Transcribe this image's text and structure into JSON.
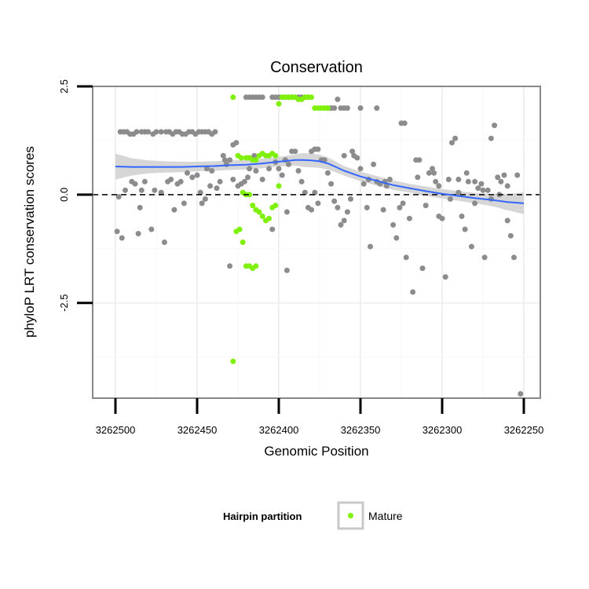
{
  "chart_data": {
    "type": "scatter",
    "title": "Conservation",
    "xlabel": "Genomic Position",
    "ylabel": "phyloP LRT conservation scores",
    "x_reversed": true,
    "xlim": [
      3262500,
      3262250
    ],
    "ylim": [
      -4.7,
      2.5
    ],
    "x_ticks": [
      3262500,
      3262450,
      3262400,
      3262350,
      3262300,
      3262250
    ],
    "x_tick_labels": [
      "3262500",
      "3262450",
      "3262400",
      "3262350",
      "3262300",
      "3262250"
    ],
    "y_ticks": [
      2.5,
      0.0,
      -2.5
    ],
    "y_tick_labels": [
      "2.5",
      "0.0",
      "-2.5"
    ],
    "reference_line": {
      "y": 0,
      "style": "dashed"
    },
    "legend": {
      "title": "Hairpin partition",
      "entries": [
        {
          "label": "Mature",
          "color": "#7ff00a"
        }
      ]
    },
    "colors": {
      "other_points": "#8c8c8c",
      "mature_points": "#7ff00a",
      "smooth_line": "#3366ff",
      "confidence_band": "#cfcfcf",
      "panel_border": "#888888"
    },
    "series": [
      {
        "name": "Other",
        "color": "#8c8c8c",
        "points": [
          [
            3262497,
            1.45
          ],
          [
            3262495,
            1.45
          ],
          [
            3262493,
            1.45
          ],
          [
            3262491,
            1.4
          ],
          [
            3262489,
            1.4
          ],
          [
            3262487,
            1.45
          ],
          [
            3262484,
            1.45
          ],
          [
            3262482,
            1.45
          ],
          [
            3262480,
            1.45
          ],
          [
            3262477,
            1.4
          ],
          [
            3262475,
            1.45
          ],
          [
            3262472,
            1.45
          ],
          [
            3262469,
            1.45
          ],
          [
            3262467,
            1.45
          ],
          [
            3262465,
            1.4
          ],
          [
            3262463,
            1.45
          ],
          [
            3262461,
            1.45
          ],
          [
            3262459,
            1.4
          ],
          [
            3262457,
            1.4
          ],
          [
            3262455,
            1.45
          ],
          [
            3262453,
            1.45
          ],
          [
            3262451,
            1.4
          ],
          [
            3262449,
            1.45
          ],
          [
            3262447,
            1.45
          ],
          [
            3262445,
            1.45
          ],
          [
            3262443,
            1.45
          ],
          [
            3262441,
            1.4
          ],
          [
            3262439,
            1.45
          ],
          [
            3262499,
            -0.85
          ],
          [
            3262496,
            -1.0
          ],
          [
            3262490,
            0.3
          ],
          [
            3262488,
            0.25
          ],
          [
            3262486,
            -0.9
          ],
          [
            3262484,
            0.1
          ],
          [
            3262482,
            0.3
          ],
          [
            3262478,
            -0.8
          ],
          [
            3262476,
            0.1
          ],
          [
            3262470,
            -1.1
          ],
          [
            3262468,
            0.3
          ],
          [
            3262466,
            0.35
          ],
          [
            3262462,
            0.25
          ],
          [
            3262460,
            0.3
          ],
          [
            3262458,
            -0.2
          ],
          [
            3262456,
            0.5
          ],
          [
            3262453,
            0.4
          ],
          [
            3262450,
            0.45
          ],
          [
            3262447,
            -0.2
          ],
          [
            3262444,
            0.6
          ],
          [
            3262441,
            0.55
          ],
          [
            3262438,
            0.15
          ],
          [
            3262436,
            0.3
          ],
          [
            3262434,
            0.9
          ],
          [
            3262432,
            0.7
          ],
          [
            3262430,
            0.8
          ],
          [
            3262428,
            0.35
          ],
          [
            3262425,
            0.2
          ],
          [
            3262423,
            0.25
          ],
          [
            3262421,
            0.3
          ],
          [
            3262419,
            0.4
          ],
          [
            3262498,
            -0.05
          ],
          [
            3262494,
            0.1
          ],
          [
            3262485,
            -0.3
          ],
          [
            3262472,
            0.05
          ],
          [
            3262464,
            -0.35
          ],
          [
            3262448,
            0.05
          ],
          [
            3262445,
            -0.1
          ],
          [
            3262442,
            0.2
          ],
          [
            3262418,
            0.6
          ],
          [
            3262414,
            0.55
          ],
          [
            3262410,
            0.35
          ],
          [
            3262406,
            0.6
          ],
          [
            3262404,
            -0.8
          ],
          [
            3262402,
            0.75
          ],
          [
            3262400,
            0.6
          ],
          [
            3262398,
            0.45
          ],
          [
            3262396,
            0.8
          ],
          [
            3262394,
            0.7
          ],
          [
            3262392,
            1.0
          ],
          [
            3262390,
            1.0
          ],
          [
            3262388,
            0.55
          ],
          [
            3262386,
            0.3
          ],
          [
            3262384,
            0.05
          ],
          [
            3262382,
            -0.3
          ],
          [
            3262380,
            -0.35
          ],
          [
            3262378,
            0.05
          ],
          [
            3262376,
            -0.2
          ],
          [
            3262374,
            0.8
          ],
          [
            3262372,
            0.8
          ],
          [
            3262370,
            0.5
          ],
          [
            3262368,
            0.25
          ],
          [
            3262366,
            -0.15
          ],
          [
            3262364,
            -0.3
          ],
          [
            3262362,
            -0.7
          ],
          [
            3262360,
            -0.6
          ],
          [
            3262358,
            -0.4
          ],
          [
            3262356,
            -0.1
          ],
          [
            3262354,
            0.9
          ],
          [
            3262352,
            0.85
          ],
          [
            3262350,
            0.6
          ],
          [
            3262348,
            0.25
          ],
          [
            3262346,
            -0.3
          ],
          [
            3262344,
            -1.2
          ],
          [
            3262342,
            0.7
          ],
          [
            3262340,
            0.3
          ],
          [
            3262338,
            0.25
          ],
          [
            3262336,
            -0.35
          ],
          [
            3262334,
            0.2
          ],
          [
            3262332,
            0.35
          ],
          [
            3262330,
            -0.7
          ],
          [
            3262328,
            -1.0
          ],
          [
            3262326,
            -0.3
          ],
          [
            3262324,
            -0.2
          ],
          [
            3262322,
            -1.45
          ],
          [
            3262320,
            -0.55
          ],
          [
            3262318,
            -2.25
          ],
          [
            3262316,
            0.8
          ],
          [
            3262314,
            0.8
          ],
          [
            3262312,
            -1.7
          ],
          [
            3262310,
            -0.25
          ],
          [
            3262308,
            0.5
          ],
          [
            3262306,
            0.6
          ],
          [
            3262304,
            0.3
          ],
          [
            3262302,
            -0.5
          ],
          [
            3262300,
            -0.55
          ],
          [
            3262298,
            -1.9
          ],
          [
            3262296,
            0.35
          ],
          [
            3262294,
            1.2
          ],
          [
            3262292,
            1.3
          ],
          [
            3262290,
            0.35
          ],
          [
            3262288,
            -0.5
          ],
          [
            3262286,
            -0.8
          ],
          [
            3262284,
            0.3
          ],
          [
            3262282,
            -1.2
          ],
          [
            3262280,
            0.3
          ],
          [
            3262278,
            0.15
          ],
          [
            3262276,
            0.25
          ],
          [
            3262274,
            -1.45
          ],
          [
            3262272,
            0.1
          ],
          [
            3262270,
            1.3
          ],
          [
            3262268,
            1.6
          ],
          [
            3262266,
            0.4
          ],
          [
            3262264,
            0.3
          ],
          [
            3262262,
            0.45
          ],
          [
            3262260,
            0.2
          ],
          [
            3262258,
            -0.95
          ],
          [
            3262256,
            -1.45
          ],
          [
            3262254,
            0.45
          ],
          [
            3262252,
            -4.6
          ],
          [
            3262420,
            2.25
          ],
          [
            3262418,
            2.25
          ],
          [
            3262416,
            2.25
          ],
          [
            3262414,
            2.25
          ],
          [
            3262412,
            2.25
          ],
          [
            3262410,
            2.25
          ],
          [
            3262404,
            2.25
          ],
          [
            3262402,
            2.25
          ],
          [
            3262400,
            2.25
          ],
          [
            3262398,
            2.25
          ],
          [
            3262396,
            2.25
          ],
          [
            3262394,
            2.25
          ],
          [
            3262392,
            2.25
          ],
          [
            3262390,
            2.25
          ],
          [
            3262388,
            2.25
          ],
          [
            3262386,
            2.25
          ],
          [
            3262384,
            2.25
          ],
          [
            3262382,
            2.25
          ],
          [
            3262370,
            2.0
          ],
          [
            3262368,
            2.0
          ],
          [
            3262366,
            2.0
          ],
          [
            3262364,
            2.2
          ],
          [
            3262362,
            2.0
          ],
          [
            3262360,
            2.0
          ],
          [
            3262358,
            2.0
          ],
          [
            3262350,
            2.0
          ],
          [
            3262340,
            2.0
          ],
          [
            3262325,
            1.65
          ],
          [
            3262323,
            1.65
          ],
          [
            3262428,
            1.15
          ],
          [
            3262426,
            1.2
          ],
          [
            3262415,
            0.9
          ],
          [
            3262395,
            -0.4
          ],
          [
            3262380,
            1.0
          ],
          [
            3262378,
            1.05
          ],
          [
            3262376,
            1.05
          ],
          [
            3262360,
            0.9
          ],
          [
            3262355,
            1.0
          ],
          [
            3262345,
            0.35
          ],
          [
            3262335,
            0.3
          ],
          [
            3262315,
            0.4
          ],
          [
            3262305,
            0.5
          ],
          [
            3262295,
            -0.1
          ],
          [
            3262290,
            0.05
          ],
          [
            3262285,
            0.5
          ],
          [
            3262280,
            -0.2
          ],
          [
            3262275,
            0.1
          ],
          [
            3262270,
            -0.1
          ],
          [
            3262265,
            0.0
          ],
          [
            3262260,
            -0.6
          ],
          [
            3262430,
            -1.65
          ],
          [
            3262433,
            0.8
          ],
          [
            3262395,
            -1.75
          ],
          [
            3262302,
            0.2
          ]
        ]
      },
      {
        "name": "Mature",
        "color": "#7ff00a",
        "points": [
          [
            3262428,
            2.25
          ],
          [
            3262425,
            0.9
          ],
          [
            3262423,
            0.85
          ],
          [
            3262420,
            0.85
          ],
          [
            3262418,
            0.85
          ],
          [
            3262416,
            0.8
          ],
          [
            3262414,
            0.8
          ],
          [
            3262412,
            0.9
          ],
          [
            3262410,
            0.95
          ],
          [
            3262408,
            0.9
          ],
          [
            3262406,
            0.9
          ],
          [
            3262404,
            0.95
          ],
          [
            3262402,
            0.9
          ],
          [
            3262400,
            2.1
          ],
          [
            3262398,
            2.25
          ],
          [
            3262396,
            2.25
          ],
          [
            3262394,
            2.25
          ],
          [
            3262392,
            2.25
          ],
          [
            3262390,
            2.25
          ],
          [
            3262388,
            2.2
          ],
          [
            3262386,
            2.2
          ],
          [
            3262384,
            2.25
          ],
          [
            3262382,
            2.25
          ],
          [
            3262380,
            2.25
          ],
          [
            3262378,
            2.0
          ],
          [
            3262376,
            2.0
          ],
          [
            3262374,
            2.0
          ],
          [
            3262372,
            2.0
          ],
          [
            3262370,
            2.0
          ],
          [
            3262418,
            0.0
          ],
          [
            3262420,
            0.0
          ],
          [
            3262422,
            0.05
          ],
          [
            3262416,
            -0.25
          ],
          [
            3262414,
            -0.35
          ],
          [
            3262412,
            -0.4
          ],
          [
            3262410,
            -0.5
          ],
          [
            3262408,
            -0.6
          ],
          [
            3262406,
            -0.55
          ],
          [
            3262404,
            -0.3
          ],
          [
            3262402,
            -0.25
          ],
          [
            3262400,
            0.2
          ],
          [
            3262424,
            -0.8
          ],
          [
            3262422,
            -1.1
          ],
          [
            3262420,
            -1.65
          ],
          [
            3262418,
            -1.65
          ],
          [
            3262416,
            -1.7
          ],
          [
            3262414,
            -1.65
          ],
          [
            3262428,
            -3.85
          ],
          [
            3262426,
            -0.85
          ]
        ]
      }
    ],
    "smooth_fit": {
      "x": [
        3262500,
        3262490,
        3262480,
        3262470,
        3262460,
        3262450,
        3262440,
        3262430,
        3262420,
        3262410,
        3262400,
        3262390,
        3262385,
        3262380,
        3262375,
        3262370,
        3262365,
        3262360,
        3262350,
        3262340,
        3262330,
        3262320,
        3262310,
        3262300,
        3262290,
        3262280,
        3262270,
        3262260,
        3262250
      ],
      "y": [
        0.65,
        0.64,
        0.64,
        0.64,
        0.64,
        0.65,
        0.66,
        0.68,
        0.69,
        0.72,
        0.76,
        0.8,
        0.8,
        0.79,
        0.77,
        0.72,
        0.64,
        0.55,
        0.42,
        0.32,
        0.22,
        0.15,
        0.08,
        0.02,
        -0.03,
        -0.08,
        -0.12,
        -0.17,
        -0.2
      ],
      "se_upper": [
        0.95,
        0.84,
        0.79,
        0.77,
        0.76,
        0.76,
        0.77,
        0.79,
        0.8,
        0.83,
        0.87,
        0.93,
        0.96,
        0.95,
        0.92,
        0.86,
        0.76,
        0.66,
        0.53,
        0.43,
        0.33,
        0.25,
        0.19,
        0.13,
        0.08,
        0.04,
        0.02,
        0.02,
        0.05
      ],
      "se_lower": [
        0.35,
        0.44,
        0.49,
        0.51,
        0.52,
        0.54,
        0.55,
        0.57,
        0.58,
        0.61,
        0.65,
        0.67,
        0.64,
        0.63,
        0.62,
        0.58,
        0.52,
        0.44,
        0.31,
        0.21,
        0.11,
        0.05,
        -0.03,
        -0.09,
        -0.14,
        -0.2,
        -0.26,
        -0.36,
        -0.45
      ]
    }
  }
}
